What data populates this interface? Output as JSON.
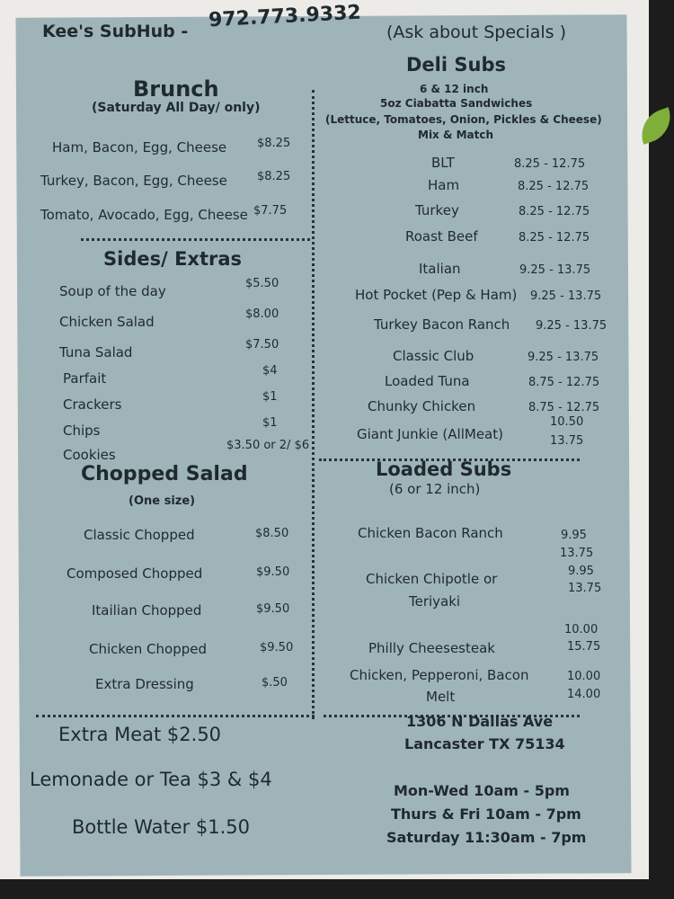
{
  "header": {
    "name": "Kee's SubHub -",
    "phone": "972.773.9332",
    "specials": "(Ask about Specials )"
  },
  "brunch": {
    "title": "Brunch",
    "subtitle": "(Saturday  All Day/ only)",
    "items": [
      {
        "name": "Ham, Bacon, Egg, Cheese",
        "price": "$8.25"
      },
      {
        "name": "Turkey, Bacon, Egg, Cheese",
        "price": "$8.25"
      },
      {
        "name": "Tomato, Avocado, Egg, Cheese",
        "price": "$7.75"
      }
    ]
  },
  "sides": {
    "title": "Sides/ Extras",
    "items": [
      {
        "name": "Soup of the day",
        "price": "$5.50"
      },
      {
        "name": "Chicken Salad",
        "price": "$8.00"
      },
      {
        "name": "Tuna Salad",
        "price": "$7.50"
      },
      {
        "name": "Parfait",
        "price": "$4"
      },
      {
        "name": "Crackers",
        "price": "$1"
      },
      {
        "name": "Chips",
        "price": "$1"
      },
      {
        "name": "Cookies",
        "price": "$3.50 or 2/ $6"
      }
    ]
  },
  "chopped": {
    "title": "Chopped Salad",
    "subtitle": "(One size)",
    "items": [
      {
        "name": "Classic Chopped",
        "price": "$8.50"
      },
      {
        "name": "Composed Chopped",
        "price": "$9.50"
      },
      {
        "name": "Itailian Chopped",
        "price": "$9.50"
      },
      {
        "name": "Chicken Chopped",
        "price": "$9.50"
      },
      {
        "name": "Extra Dressing",
        "price": "$.50"
      }
    ]
  },
  "extras": [
    "Extra Meat $2.50",
    "Lemonade or Tea   $3 & $4",
    "Bottle Water $1.50"
  ],
  "deli": {
    "title": "Deli Subs",
    "lines": [
      "6  & 12 inch",
      "5oz Ciabatta Sandwiches",
      "(Lettuce, Tomatoes, Onion, Pickles & Cheese)",
      "Mix & Match"
    ],
    "items": [
      {
        "name": "BLT",
        "price": "8.25 - 12.75"
      },
      {
        "name": "Ham",
        "price": "8.25 - 12.75"
      },
      {
        "name": "Turkey",
        "price": "8.25 - 12.75"
      },
      {
        "name": "Roast Beef",
        "price": "8.25  - 12.75"
      },
      {
        "name": "Italian",
        "price": "9.25 - 13.75"
      },
      {
        "name": "Hot Pocket (Pep & Ham)",
        "price": "9.25 - 13.75"
      },
      {
        "name": "Turkey Bacon Ranch",
        "price": "9.25 - 13.75"
      },
      {
        "name": "Classic Club",
        "price": "9.25 - 13.75"
      },
      {
        "name": "Loaded Tuna",
        "price": "8.75 - 12.75"
      },
      {
        "name": "Chunky Chicken",
        "price": "8.75 - 12.75"
      },
      {
        "name": "Giant Junkie (AllMeat)",
        "price": "10.50",
        "price2": "13.75"
      }
    ]
  },
  "loaded": {
    "title": "Loaded Subs",
    "subtitle": "(6 or 12 inch)",
    "items": [
      {
        "name": "Chicken Bacon Ranch",
        "price": "9.95",
        "price2": "13.75"
      },
      {
        "name": "Chicken Chipotle or",
        "name2": "Teriyaki",
        "price": "9.95",
        "price2": "13.75"
      },
      {
        "name": "Philly Cheesesteak",
        "price": "10.00",
        "price2": "15.75"
      },
      {
        "name": "Chicken, Pepperoni, Bacon",
        "name2": "Melt",
        "price": "10.00",
        "price2": "14.00"
      }
    ]
  },
  "address": [
    "1306 N Dallas Ave",
    "Lancaster TX 75134"
  ],
  "hours": [
    "Mon-Wed 10am - 5pm",
    "Thurs & Fri 10am - 7pm",
    "Saturday 11:30am - 7pm"
  ]
}
